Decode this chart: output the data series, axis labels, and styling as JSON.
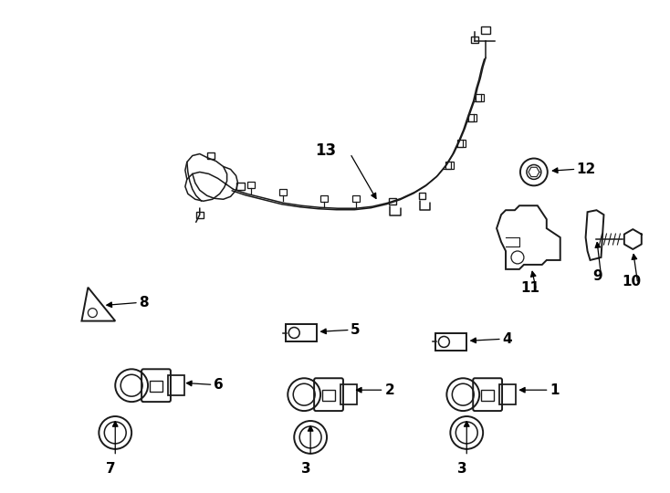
{
  "bg_color": "#ffffff",
  "line_color": "#1a1a1a",
  "text_color": "#000000",
  "fig_width": 7.34,
  "fig_height": 5.4,
  "dpi": 100
}
